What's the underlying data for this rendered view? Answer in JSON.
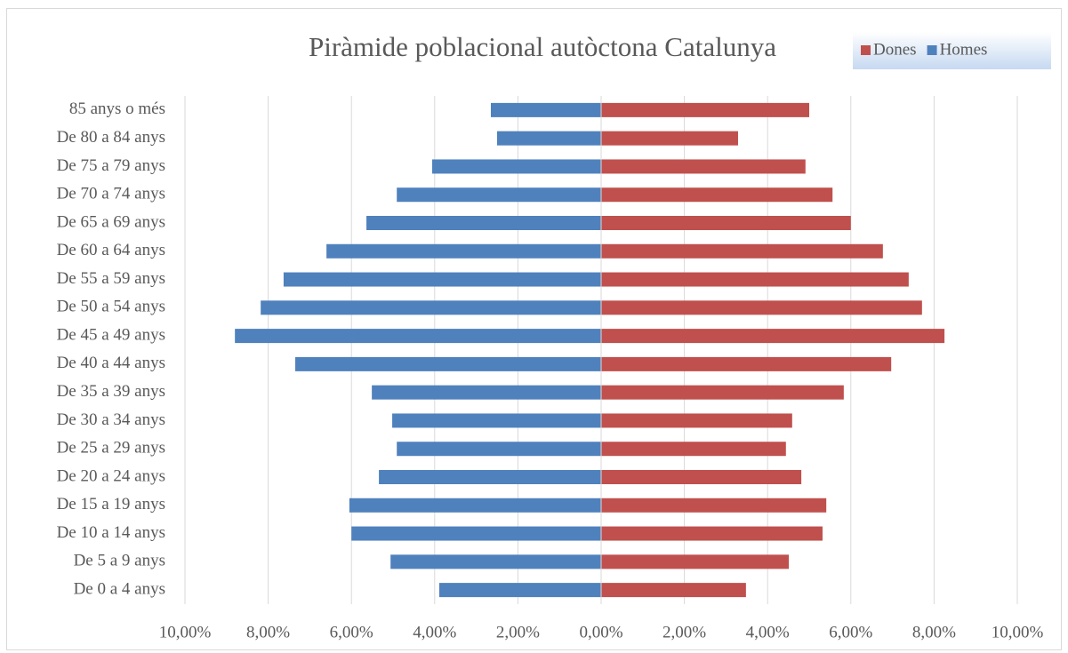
{
  "chart_data": {
    "type": "pyramid",
    "title": "Piràmide poblacional autòctona Catalunya",
    "categories": [
      "85 anys o més",
      "De 80 a 84 anys",
      "De 75 a 79 anys",
      "De 70 a 74 anys",
      "De 65 a 69 anys",
      "De 60 a 64 anys",
      "De 55 a 59 anys",
      "De 50 a 54 anys",
      "De 45 a 49 anys",
      "De 40 a 44 anys",
      "De 35 a 39 anys",
      "De 30 a 34 anys",
      "De 25 a 29 anys",
      "De 20 a 24 anys",
      "De 15 a 19 anys",
      "De 10 a 14 anys",
      "De 5 a 9 anys",
      "De 0 a 4 anys"
    ],
    "series": [
      {
        "name": "Dones",
        "color": "#c0504d",
        "values": [
          5.0,
          3.29,
          4.91,
          5.56,
          6.0,
          6.77,
          7.39,
          7.71,
          8.25,
          6.97,
          5.83,
          4.59,
          4.44,
          4.81,
          5.41,
          5.32,
          4.51,
          3.48
        ]
      },
      {
        "name": "Homes",
        "color": "#4f81bd",
        "values": [
          -2.65,
          -2.5,
          -4.06,
          -4.91,
          -5.64,
          -6.6,
          -7.63,
          -8.18,
          -8.8,
          -7.35,
          -5.51,
          -5.02,
          -4.91,
          -5.34,
          -6.05,
          -6.0,
          -5.06,
          -3.89
        ]
      }
    ],
    "xlim": [
      -10,
      10
    ],
    "xticks": [
      {
        "value": -10,
        "label": "10,00%"
      },
      {
        "value": -8,
        "label": "8,00%"
      },
      {
        "value": -6,
        "label": "6,00%"
      },
      {
        "value": -4,
        "label": "4,00%"
      },
      {
        "value": -2,
        "label": "2,00%"
      },
      {
        "value": 0,
        "label": "0,00%"
      },
      {
        "value": 2,
        "label": "2,00%"
      },
      {
        "value": 4,
        "label": "4,00%"
      },
      {
        "value": 6,
        "label": "6,00%"
      },
      {
        "value": 8,
        "label": "8,00%"
      },
      {
        "value": 10,
        "label": "10,00%"
      }
    ],
    "grid": true,
    "legend": "top-right"
  }
}
